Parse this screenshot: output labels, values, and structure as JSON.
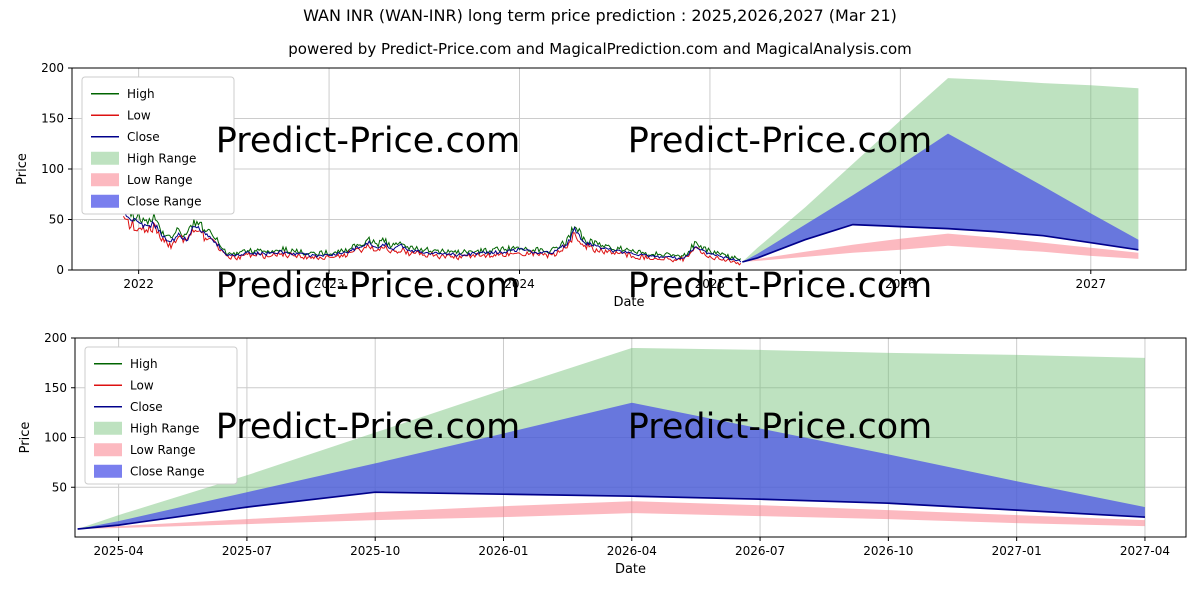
{
  "figure": {
    "title": "WAN INR (WAN-INR) long term price prediction : 2025,2026,2027 (Mar 21)",
    "subtitle": "powered by Predict-Price.com and MagicalPrediction.com and MagicalAnalysis.com",
    "watermark_text": "Predict-Price.com"
  },
  "colors": {
    "high_line": "#006400",
    "low_line": "#dd1111",
    "close_line": "#00008b",
    "high_range_fill": "rgba(110,190,115,0.45)",
    "low_range_fill": "rgba(250,115,130,0.50)",
    "close_range_fill": "rgba(70,78,232,0.72)",
    "grid": "#cccccc",
    "axis": "#000000",
    "watermark": "rgba(105,105,105,0.28)"
  },
  "chart_data": [
    {
      "id": "history-and-forecast",
      "type": "line",
      "title": "",
      "xlabel": "Date",
      "ylabel": "Price",
      "xlim": [
        2021.65,
        2027.5
      ],
      "ylim": [
        0,
        200
      ],
      "grid": true,
      "legend_position": "upper-left",
      "yticks": [
        0,
        50,
        100,
        150,
        200
      ],
      "xticks": {
        "values": [
          2022,
          2023,
          2024,
          2025,
          2026,
          2027
        ],
        "labels": [
          "2022",
          "2023",
          "2024",
          "2025",
          "2026",
          "2027"
        ]
      },
      "legend": [
        {
          "label": "High",
          "type": "line",
          "color": "high_line"
        },
        {
          "label": "Low",
          "type": "line",
          "color": "low_line"
        },
        {
          "label": "Close",
          "type": "line",
          "color": "close_line"
        },
        {
          "label": "High Range",
          "type": "patch",
          "color": "high_range_fill"
        },
        {
          "label": "Low Range",
          "type": "patch",
          "color": "low_range_fill"
        },
        {
          "label": "Close Range",
          "type": "patch",
          "color": "close_range_fill"
        }
      ],
      "historical": {
        "x": [
          2021.92,
          2021.96,
          2022.0,
          2022.04,
          2022.08,
          2022.12,
          2022.17,
          2022.21,
          2022.25,
          2022.29,
          2022.33,
          2022.38,
          2022.42,
          2022.46,
          2022.5,
          2022.58,
          2022.67,
          2022.75,
          2022.83,
          2022.92,
          2023.0,
          2023.08,
          2023.17,
          2023.21,
          2023.25,
          2023.29,
          2023.33,
          2023.38,
          2023.42,
          2023.5,
          2023.58,
          2023.67,
          2023.75,
          2023.83,
          2023.92,
          2024.0,
          2024.08,
          2024.17,
          2024.25,
          2024.29,
          2024.33,
          2024.38,
          2024.42,
          2024.5,
          2024.58,
          2024.67,
          2024.75,
          2024.83,
          2024.88,
          2024.92,
          2024.96,
          2025.0,
          2025.04,
          2025.08,
          2025.13,
          2025.17
        ],
        "close": [
          57,
          50,
          48,
          43,
          47,
          34,
          27,
          37,
          29,
          43,
          39,
          32,
          24,
          15,
          14,
          17,
          16,
          18,
          16,
          14,
          15,
          17,
          23,
          27,
          22,
          26,
          21,
          24,
          19,
          18,
          16,
          15,
          16,
          17,
          18,
          20,
          18,
          17,
          26,
          40,
          29,
          24,
          22,
          19,
          17,
          14,
          13,
          12,
          14,
          24,
          19,
          16,
          14,
          12,
          10,
          8
        ],
        "high_factor": 1.07,
        "high_offset": 1.2,
        "low_factor": 0.93,
        "low_offset": -1.2,
        "noise_base": 1.2,
        "noise_scale": 0.09
      },
      "forecast": {
        "x": [
          2025.17,
          2025.25,
          2025.5,
          2025.75,
          2026.0,
          2026.25,
          2026.5,
          2026.75,
          2027.0,
          2027.25
        ],
        "high_range_upper": [
          8,
          22,
          62,
          105,
          148,
          190,
          188,
          185,
          183,
          180
        ],
        "close_range_upper": [
          8,
          16,
          45,
          74,
          104,
          135,
          109,
          83,
          56,
          30
        ],
        "close": [
          8,
          12,
          30,
          45,
          43,
          41,
          38,
          34,
          27,
          20
        ],
        "low_range_upper": [
          8,
          11,
          18,
          25,
          31,
          36,
          32,
          27,
          22,
          17
        ],
        "low_range_lower": [
          8,
          9,
          13,
          17,
          20,
          24,
          21,
          18,
          14,
          11
        ]
      }
    },
    {
      "id": "forecast-detail",
      "type": "line",
      "title": "",
      "xlabel": "Date",
      "ylabel": "Price",
      "xlim": [
        2025.165,
        2027.33
      ],
      "ylim": [
        0,
        200
      ],
      "grid": true,
      "legend_position": "upper-left",
      "yticks": [
        50,
        100,
        150,
        200
      ],
      "xticks": {
        "values": [
          2025.25,
          2025.5,
          2025.75,
          2026.0,
          2026.25,
          2026.5,
          2026.75,
          2027.0,
          2027.25
        ],
        "labels": [
          "2025-04",
          "2025-07",
          "2025-10",
          "2026-01",
          "2026-04",
          "2026-07",
          "2026-10",
          "2027-01",
          "2027-04"
        ]
      },
      "legend": [
        {
          "label": "High",
          "type": "line",
          "color": "high_line"
        },
        {
          "label": "Low",
          "type": "line",
          "color": "low_line"
        },
        {
          "label": "Close",
          "type": "line",
          "color": "close_line"
        },
        {
          "label": "High Range",
          "type": "patch",
          "color": "high_range_fill"
        },
        {
          "label": "Low Range",
          "type": "patch",
          "color": "low_range_fill"
        },
        {
          "label": "Close Range",
          "type": "patch",
          "color": "close_range_fill"
        }
      ],
      "forecast": {
        "x": [
          2025.17,
          2025.25,
          2025.5,
          2025.75,
          2026.0,
          2026.25,
          2026.5,
          2026.75,
          2027.0,
          2027.25
        ],
        "high_range_upper": [
          8,
          22,
          62,
          105,
          148,
          190,
          188,
          185,
          183,
          180
        ],
        "close_range_upper": [
          8,
          16,
          45,
          74,
          104,
          135,
          109,
          83,
          56,
          30
        ],
        "close": [
          8,
          12,
          30,
          45,
          43,
          41,
          38,
          34,
          27,
          20
        ],
        "low_range_upper": [
          8,
          11,
          18,
          25,
          31,
          36,
          32,
          27,
          22,
          17
        ],
        "low_range_lower": [
          8,
          9,
          13,
          17,
          20,
          24,
          21,
          18,
          14,
          11
        ]
      }
    }
  ]
}
